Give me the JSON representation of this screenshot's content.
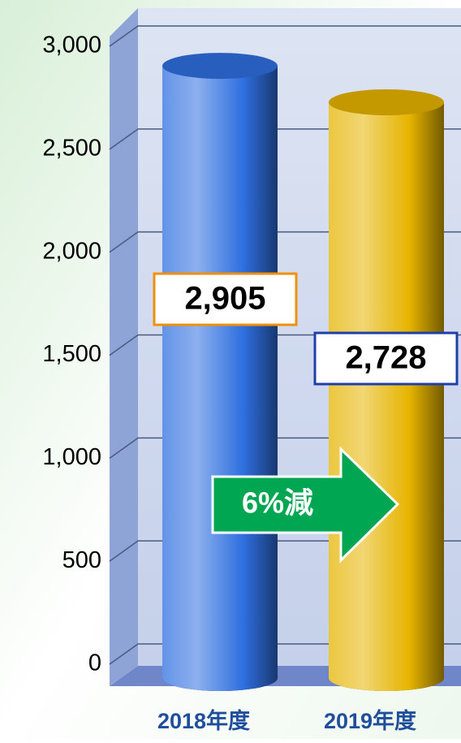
{
  "chart_data": {
    "type": "bar3d",
    "categories": [
      "2018年度",
      "2019年度"
    ],
    "values": [
      2905,
      2728
    ],
    "value_labels": [
      "2,905",
      "2,728"
    ],
    "colors": [
      "#2f6fe0",
      "#e6b400"
    ],
    "ylim": [
      0,
      3000
    ],
    "yticks": [
      0,
      500,
      {
        "value": 1000,
        "label": "1,000"
      },
      {
        "value": 1500,
        "label": "1,500"
      },
      {
        "value": 2000,
        "label": "2,000"
      },
      {
        "value": 2500,
        "label": "2,500"
      },
      {
        "value": 3000,
        "label": "3,000"
      }
    ],
    "grid": true,
    "annotation": "6%減"
  }
}
